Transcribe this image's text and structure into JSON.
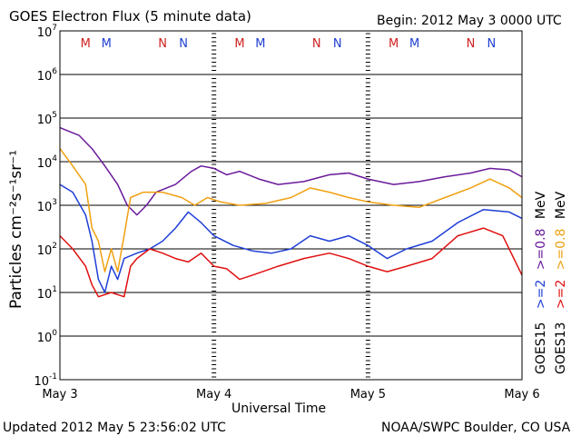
{
  "header": {
    "title": "GOES Electron Flux (5 minute data)",
    "begin": "Begin: 2012 May 3 0000 UTC"
  },
  "footer": {
    "updated": "Updated 2012 May  5 23:56:02 UTC",
    "credit": "NOAA/SWPC Boulder, CO USA"
  },
  "right_labels": {
    "goes15_prefix": "GOES15",
    "goes13_prefix": "GOES13",
    "ge2": ">=2",
    "ge08": ">=0.8",
    "mev": "MeV"
  },
  "colors": {
    "goes15_ge2": "#1f3fd6",
    "goes15_ge08": "#6a1a9a",
    "goes13_ge2": "#e01010",
    "goes13_ge08": "#f0a010",
    "marker_M_goes13": "#d02020",
    "marker_M_goes15": "#2040d0",
    "marker_N_goes13": "#d02020",
    "marker_N_goes15": "#2040d0",
    "threshold": "#000000"
  },
  "chart_data": {
    "type": "line",
    "xlabel": "Universal Time",
    "ylabel": "Particles cm⁻²s⁻¹sr⁻¹",
    "yscale": "log",
    "xlim": [
      "2012-05-03 00:00",
      "2012-05-06 00:00"
    ],
    "ylim": [
      0.1,
      10000000
    ],
    "x_ticks": [
      "May 3",
      "May 4",
      "May 5",
      "May 6"
    ],
    "y_tick_labels": [
      {
        "base": "10",
        "exp": "-1"
      },
      {
        "base": "10",
        "exp": "0"
      },
      {
        "base": "10",
        "exp": "1"
      },
      {
        "base": "10",
        "exp": "2"
      },
      {
        "base": "10",
        "exp": "3"
      },
      {
        "base": "10",
        "exp": "4"
      },
      {
        "base": "10",
        "exp": "5"
      },
      {
        "base": "10",
        "exp": "6"
      },
      {
        "base": "10",
        "exp": "7"
      }
    ],
    "grid": "horizontal decades",
    "threshold": 1000,
    "markers": [
      {
        "label": "M",
        "time": "2012-05-03 04:00",
        "satellite": "GOES13"
      },
      {
        "label": "M",
        "time": "2012-05-03 07:15",
        "satellite": "GOES15"
      },
      {
        "label": "N",
        "time": "2012-05-03 16:00",
        "satellite": "GOES13"
      },
      {
        "label": "N",
        "time": "2012-05-03 19:15",
        "satellite": "GOES15"
      },
      {
        "label": "M",
        "time": "2012-05-04 04:00",
        "satellite": "GOES13"
      },
      {
        "label": "M",
        "time": "2012-05-04 07:15",
        "satellite": "GOES15"
      },
      {
        "label": "N",
        "time": "2012-05-04 16:00",
        "satellite": "GOES13"
      },
      {
        "label": "N",
        "time": "2012-05-04 19:15",
        "satellite": "GOES15"
      },
      {
        "label": "M",
        "time": "2012-05-05 04:00",
        "satellite": "GOES13"
      },
      {
        "label": "M",
        "time": "2012-05-05 07:15",
        "satellite": "GOES15"
      },
      {
        "label": "N",
        "time": "2012-05-05 16:00",
        "satellite": "GOES13"
      },
      {
        "label": "N",
        "time": "2012-05-05 19:15",
        "satellite": "GOES15"
      }
    ],
    "series": [
      {
        "name": "GOES15 >=0.8 MeV",
        "points": [
          [
            "2012-05-03 00:00",
            60000
          ],
          [
            "2012-05-03 03:00",
            40000
          ],
          [
            "2012-05-03 05:00",
            20000
          ],
          [
            "2012-05-03 07:00",
            8000
          ],
          [
            "2012-05-03 09:00",
            3000
          ],
          [
            "2012-05-03 10:30",
            1000
          ],
          [
            "2012-05-03 12:00",
            600
          ],
          [
            "2012-05-03 13:30",
            1000
          ],
          [
            "2012-05-03 15:00",
            2000
          ],
          [
            "2012-05-03 18:00",
            3000
          ],
          [
            "2012-05-03 20:30",
            6000
          ],
          [
            "2012-05-03 22:00",
            8000
          ],
          [
            "2012-05-04 00:00",
            7000
          ],
          [
            "2012-05-04 02:00",
            5000
          ],
          [
            "2012-05-04 04:00",
            6000
          ],
          [
            "2012-05-04 07:00",
            4000
          ],
          [
            "2012-05-04 10:00",
            3000
          ],
          [
            "2012-05-04 14:00",
            3500
          ],
          [
            "2012-05-04 18:00",
            5000
          ],
          [
            "2012-05-04 21:00",
            5500
          ],
          [
            "2012-05-05 00:00",
            4000
          ],
          [
            "2012-05-05 04:00",
            3000
          ],
          [
            "2012-05-05 08:00",
            3500
          ],
          [
            "2012-05-05 12:00",
            4500
          ],
          [
            "2012-05-05 16:00",
            5500
          ],
          [
            "2012-05-05 19:00",
            7000
          ],
          [
            "2012-05-05 22:00",
            6500
          ],
          [
            "2012-05-06 00:00",
            4500
          ]
        ]
      },
      {
        "name": "GOES13 >=0.8 MeV",
        "points": [
          [
            "2012-05-03 00:00",
            20000
          ],
          [
            "2012-05-03 02:00",
            8000
          ],
          [
            "2012-05-03 04:00",
            3000
          ],
          [
            "2012-05-03 05:00",
            300
          ],
          [
            "2012-05-03 06:00",
            150
          ],
          [
            "2012-05-03 07:00",
            30
          ],
          [
            "2012-05-03 08:00",
            100
          ],
          [
            "2012-05-03 09:00",
            30
          ],
          [
            "2012-05-03 10:00",
            200
          ],
          [
            "2012-05-03 11:00",
            1500
          ],
          [
            "2012-05-03 13:00",
            2000
          ],
          [
            "2012-05-03 16:00",
            2000
          ],
          [
            "2012-05-03 19:00",
            1500
          ],
          [
            "2012-05-03 21:00",
            1000
          ],
          [
            "2012-05-03 23:00",
            1500
          ],
          [
            "2012-05-04 01:00",
            1200
          ],
          [
            "2012-05-04 04:00",
            1000
          ],
          [
            "2012-05-04 08:00",
            1100
          ],
          [
            "2012-05-04 12:00",
            1500
          ],
          [
            "2012-05-04 15:00",
            2500
          ],
          [
            "2012-05-04 18:00",
            2000
          ],
          [
            "2012-05-04 21:00",
            1500
          ],
          [
            "2012-05-05 00:00",
            1200
          ],
          [
            "2012-05-05 04:00",
            1000
          ],
          [
            "2012-05-05 08:00",
            900
          ],
          [
            "2012-05-05 12:00",
            1500
          ],
          [
            "2012-05-05 16:00",
            2500
          ],
          [
            "2012-05-05 19:00",
            4000
          ],
          [
            "2012-05-05 22:00",
            2500
          ],
          [
            "2012-05-06 00:00",
            1500
          ]
        ]
      },
      {
        "name": "GOES15 >=2 MeV",
        "points": [
          [
            "2012-05-03 00:00",
            3000
          ],
          [
            "2012-05-03 02:00",
            2000
          ],
          [
            "2012-05-03 04:00",
            600
          ],
          [
            "2012-05-03 05:00",
            150
          ],
          [
            "2012-05-03 06:00",
            20
          ],
          [
            "2012-05-03 07:00",
            10
          ],
          [
            "2012-05-03 08:00",
            40
          ],
          [
            "2012-05-03 09:00",
            20
          ],
          [
            "2012-05-03 10:00",
            60
          ],
          [
            "2012-05-03 12:00",
            80
          ],
          [
            "2012-05-03 14:00",
            100
          ],
          [
            "2012-05-03 16:00",
            150
          ],
          [
            "2012-05-03 18:00",
            300
          ],
          [
            "2012-05-03 20:00",
            700
          ],
          [
            "2012-05-03 22:00",
            400
          ],
          [
            "2012-05-04 00:00",
            200
          ],
          [
            "2012-05-04 03:00",
            120
          ],
          [
            "2012-05-04 06:00",
            90
          ],
          [
            "2012-05-04 09:00",
            80
          ],
          [
            "2012-05-04 12:00",
            100
          ],
          [
            "2012-05-04 15:00",
            200
          ],
          [
            "2012-05-04 18:00",
            150
          ],
          [
            "2012-05-04 21:00",
            200
          ],
          [
            "2012-05-05 00:00",
            120
          ],
          [
            "2012-05-05 03:00",
            60
          ],
          [
            "2012-05-05 06:00",
            100
          ],
          [
            "2012-05-05 10:00",
            150
          ],
          [
            "2012-05-05 14:00",
            400
          ],
          [
            "2012-05-05 18:00",
            800
          ],
          [
            "2012-05-05 22:00",
            700
          ],
          [
            "2012-05-06 00:00",
            500
          ]
        ]
      },
      {
        "name": "GOES13 >=2 MeV",
        "points": [
          [
            "2012-05-03 00:00",
            200
          ],
          [
            "2012-05-03 02:00",
            100
          ],
          [
            "2012-05-03 04:00",
            40
          ],
          [
            "2012-05-03 05:00",
            15
          ],
          [
            "2012-05-03 06:00",
            8
          ],
          [
            "2012-05-03 08:00",
            10
          ],
          [
            "2012-05-03 10:00",
            8
          ],
          [
            "2012-05-03 11:00",
            40
          ],
          [
            "2012-05-03 12:00",
            60
          ],
          [
            "2012-05-03 14:00",
            100
          ],
          [
            "2012-05-03 16:00",
            80
          ],
          [
            "2012-05-03 18:00",
            60
          ],
          [
            "2012-05-03 20:00",
            50
          ],
          [
            "2012-05-03 22:00",
            80
          ],
          [
            "2012-05-04 00:00",
            40
          ],
          [
            "2012-05-04 02:00",
            35
          ],
          [
            "2012-05-04 04:00",
            20
          ],
          [
            "2012-05-04 06:00",
            25
          ],
          [
            "2012-05-04 10:00",
            40
          ],
          [
            "2012-05-04 14:00",
            60
          ],
          [
            "2012-05-04 18:00",
            80
          ],
          [
            "2012-05-04 21:00",
            60
          ],
          [
            "2012-05-05 00:00",
            40
          ],
          [
            "2012-05-05 03:00",
            30
          ],
          [
            "2012-05-05 06:00",
            40
          ],
          [
            "2012-05-05 10:00",
            60
          ],
          [
            "2012-05-05 14:00",
            200
          ],
          [
            "2012-05-05 18:00",
            300
          ],
          [
            "2012-05-05 21:00",
            200
          ],
          [
            "2012-05-05 23:00",
            50
          ],
          [
            "2012-05-06 00:00",
            25
          ]
        ]
      }
    ]
  }
}
